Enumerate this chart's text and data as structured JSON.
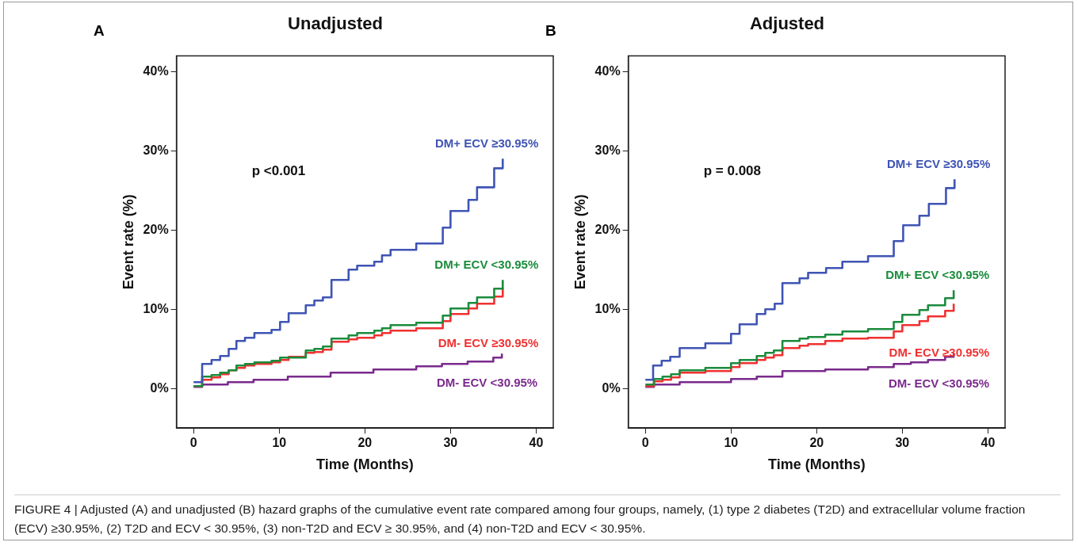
{
  "chart_data": [
    {
      "type": "step",
      "title": "Unadjusted",
      "xlabel": "Time (Months)",
      "ylabel": "Event rate (%)",
      "annotations": [
        "A",
        "p <0.001"
      ],
      "legend": false,
      "grid": false,
      "marker": "none",
      "line_style": "solid",
      "xlim": [
        -2,
        42
      ],
      "xticks": [
        0,
        10,
        20,
        30,
        40
      ],
      "ylim": [
        -5,
        42
      ],
      "yticks": [
        {
          "value": 0,
          "label": "0%"
        },
        {
          "value": 10,
          "label": "10%"
        },
        {
          "value": 20,
          "label": "20%"
        },
        {
          "value": 30,
          "label": "30%"
        },
        {
          "value": 40,
          "label": "40%"
        }
      ],
      "series": [
        {
          "name": "DM+ ECV ≥30.95%",
          "color": "#3f54b4",
          "x": [
            0,
            1,
            2.1,
            3.1,
            4.1,
            5,
            6,
            7.1,
            9.1,
            10.1,
            11.1,
            13.1,
            14.1,
            15.1,
            16.1,
            18.1,
            19.1,
            21.1,
            22,
            23,
            26,
            29.1,
            30,
            32.1,
            33.1,
            35.1,
            36.1
          ],
          "values": [
            0.8,
            3.1,
            3.6,
            4.1,
            5,
            6,
            6.4,
            7,
            7.4,
            8.4,
            9.5,
            10.5,
            11.1,
            11.5,
            13.7,
            15,
            15.5,
            16,
            16.8,
            17.5,
            18.3,
            20.3,
            22.4,
            23.8,
            25.4,
            27.8,
            29
          ]
        },
        {
          "name": "DM+ ECV <30.95%",
          "color": "#1a8c3c",
          "x": [
            0,
            1,
            2.1,
            3.1,
            4.1,
            5,
            6,
            7.1,
            9.1,
            10.1,
            13.1,
            14.1,
            15.1,
            16.1,
            18.1,
            19.1,
            21.1,
            22,
            23,
            26,
            29.1,
            30,
            32.1,
            33.1,
            35.1,
            36.1
          ],
          "values": [
            0.3,
            1.5,
            1.7,
            2,
            2.3,
            2.9,
            3.1,
            3.3,
            3.5,
            3.9,
            4.8,
            5,
            5.3,
            6.3,
            6.7,
            7,
            7.3,
            7.6,
            8,
            8.3,
            9.2,
            10.1,
            10.8,
            11.5,
            12.6,
            13.7
          ]
        },
        {
          "name": "DM- ECV ≥30.95%",
          "color": "#f03030",
          "x": [
            0,
            1,
            2.1,
            3.1,
            4.1,
            5,
            6,
            7.1,
            9.1,
            10.1,
            11.1,
            13.1,
            14.1,
            15.1,
            16.1,
            18.1,
            19.1,
            21.1,
            22,
            23,
            26,
            29.1,
            30,
            32.1,
            33.1,
            35.1,
            36.1
          ],
          "values": [
            0.3,
            1.1,
            1.4,
            1.8,
            2.3,
            2.6,
            2.9,
            3.1,
            3.3,
            3.6,
            4,
            4.5,
            4.6,
            4.9,
            5.9,
            6.2,
            6.4,
            6.7,
            7,
            7.3,
            7.6,
            8.5,
            9.4,
            10.1,
            10.7,
            11.6,
            12.7
          ]
        },
        {
          "name": "DM- ECV <30.95%",
          "color": "#7a2a8c",
          "x": [
            0,
            1,
            4,
            7,
            11,
            16,
            21,
            26,
            29,
            32,
            35,
            36
          ],
          "values": [
            0.2,
            0.5,
            0.8,
            1.1,
            1.5,
            2,
            2.4,
            2.8,
            3.1,
            3.4,
            3.9,
            4.4
          ]
        }
      ]
    },
    {
      "type": "step",
      "title": "Adjusted",
      "xlabel": "Time (Months)",
      "ylabel": "Event rate (%)",
      "annotations": [
        "B",
        "p = 0.008",
        "FIGURE 4 | Adjusted (A) and unadjusted (B) hazard graphs of the cumulative event rate compared among four groups, namely, (1) type 2 diabetes (T2D) and extracellular volume fraction (ECV) ≥30.95%, (2) T2D and ECV < 30.95%, (3) non-T2D and ECV ≥ 30.95%, and (4) non-T2D and ECV < 30.95%."
      ],
      "legend": false,
      "grid": false,
      "marker": "none",
      "line_style": "solid",
      "xlim": [
        -2,
        42
      ],
      "xticks": [
        0,
        10,
        20,
        30,
        40
      ],
      "ylim": [
        -5,
        42
      ],
      "yticks": [
        {
          "value": 0,
          "label": "0%"
        },
        {
          "value": 10,
          "label": "10%"
        },
        {
          "value": 20,
          "label": "20%"
        },
        {
          "value": 30,
          "label": "30%"
        },
        {
          "value": 40,
          "label": "40%"
        }
      ],
      "series": [
        {
          "name": "DM+ ECV ≥30.95%",
          "color": "#3f54b4",
          "x": [
            0,
            0.9,
            1.9,
            2.9,
            4,
            7,
            10,
            11,
            13,
            14,
            15.1,
            16,
            18,
            19,
            21.1,
            23,
            26,
            29,
            30.1,
            32,
            33.1,
            35.1,
            36.1
          ],
          "values": [
            1.1,
            2.9,
            3.5,
            4,
            5.1,
            5.7,
            6.9,
            8.1,
            9.4,
            10,
            10.7,
            13.3,
            13.9,
            14.6,
            15.2,
            16,
            16.7,
            18.6,
            20.6,
            21.8,
            23.3,
            25.3,
            26.4
          ]
        },
        {
          "name": "DM+ ECV <30.95%",
          "color": "#1a8c3c",
          "x": [
            0,
            1,
            2,
            3,
            4,
            7,
            10,
            11,
            13,
            14,
            15,
            16,
            18,
            19,
            21,
            23,
            26,
            29,
            30,
            32,
            33,
            35,
            36
          ],
          "values": [
            0.5,
            1.2,
            1.5,
            1.8,
            2.3,
            2.6,
            3.2,
            3.6,
            4.1,
            4.5,
            4.8,
            6,
            6.3,
            6.5,
            6.8,
            7.2,
            7.5,
            8.4,
            9.3,
            9.9,
            10.5,
            11.4,
            12.4
          ]
        },
        {
          "name": "DM- ECV ≥30.95%",
          "color": "#f03030",
          "x": [
            0,
            1,
            2,
            3,
            4,
            7,
            10,
            11,
            13,
            14,
            15,
            16,
            18,
            19,
            21,
            23,
            26,
            29,
            30,
            32,
            33,
            35,
            36
          ],
          "values": [
            0.3,
            0.9,
            1.1,
            1.4,
            2,
            2.2,
            2.7,
            3.2,
            3.6,
            3.9,
            4.2,
            5.1,
            5.4,
            5.6,
            6,
            6.3,
            6.4,
            7.2,
            8,
            8.5,
            9.1,
            9.8,
            10.7
          ]
        },
        {
          "name": "DM- ECV <30.95%",
          "color": "#7a2a8c",
          "x": [
            0,
            1,
            4,
            10,
            13,
            16,
            21,
            26,
            29,
            31,
            33,
            35,
            36
          ],
          "values": [
            0.2,
            0.5,
            0.8,
            1.2,
            1.5,
            2.2,
            2.4,
            2.7,
            3.1,
            3.3,
            3.6,
            4,
            4.4
          ]
        }
      ]
    }
  ]
}
